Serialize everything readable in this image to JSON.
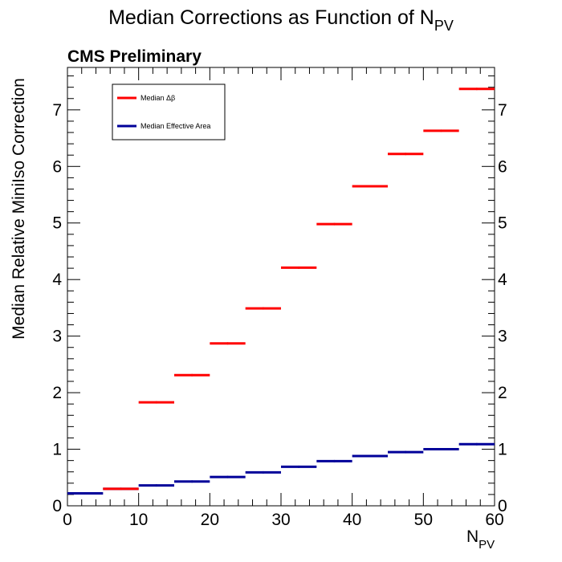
{
  "chart_data": {
    "type": "step-histogram",
    "title": "Median Corrections as Function of N",
    "title_sub": "PV",
    "label": "CMS Preliminary",
    "xlabel": "N",
    "xlabel_sub": "PV",
    "ylabel": "Median Relative MiniIso Correction",
    "xlim": [
      0,
      60
    ],
    "ylim": [
      0,
      7.75
    ],
    "x_ticks": [
      0,
      10,
      20,
      30,
      40,
      50,
      60
    ],
    "y_ticks": [
      0,
      1,
      2,
      3,
      4,
      5,
      6,
      7
    ],
    "bin_edges": [
      0,
      5,
      10,
      15,
      20,
      25,
      30,
      35,
      40,
      45,
      50,
      55,
      60
    ],
    "legend": {
      "position": "top-left",
      "entries": [
        "Median Δβ",
        "Median Effective Area"
      ]
    },
    "series": [
      {
        "name": "Median Δβ",
        "color": "#ff0000",
        "values": [
          null,
          0.3,
          1.83,
          2.31,
          2.87,
          3.49,
          4.21,
          4.98,
          5.65,
          6.22,
          6.63,
          7.37
        ]
      },
      {
        "name": "Median Effective Area",
        "color": "#000099",
        "values": [
          0.22,
          0.3,
          0.36,
          0.43,
          0.51,
          0.59,
          0.69,
          0.79,
          0.88,
          0.95,
          1.0,
          1.09
        ]
      }
    ]
  }
}
